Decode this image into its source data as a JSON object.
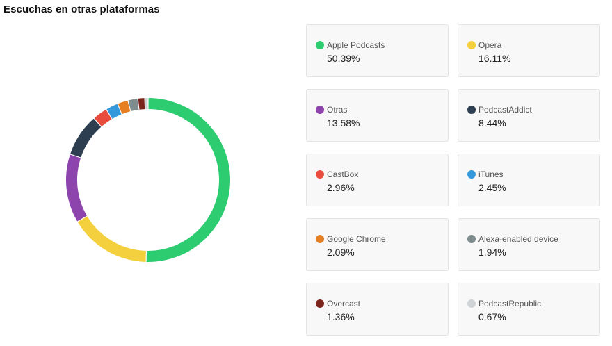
{
  "title": "Escuchas en otras plataformas",
  "chart_data": {
    "type": "pie",
    "variant": "donut",
    "title": "Escuchas en otras plataformas",
    "slices": [
      {
        "label": "Apple Podcasts",
        "value": 50.39,
        "display": "50.39%",
        "color": "#2ecc71",
        "icon": "dot"
      },
      {
        "label": "Opera",
        "value": 16.11,
        "display": "16.11%",
        "color": "#f4d03f",
        "icon": "dot"
      },
      {
        "label": "Otras",
        "value": 13.58,
        "display": "13.58%",
        "color": "#8e44ad",
        "icon": "dot"
      },
      {
        "label": "PodcastAddict",
        "value": 8.44,
        "display": "8.44%",
        "color": "#2c3e50",
        "icon": "dot"
      },
      {
        "label": "CastBox",
        "value": 2.96,
        "display": "2.96%",
        "color": "#e74c3c",
        "icon": "dot"
      },
      {
        "label": "iTunes",
        "value": 2.45,
        "display": "2.45%",
        "color": "#3498db",
        "icon": "dot"
      },
      {
        "label": "Google Chrome",
        "value": 2.09,
        "display": "2.09%",
        "color": "#e67e22",
        "icon": "dot"
      },
      {
        "label": "Alexa-enabled device",
        "value": 1.94,
        "display": "1.94%",
        "color": "#7f8c8d",
        "icon": "dot"
      },
      {
        "label": "Overcast",
        "value": 1.36,
        "display": "1.36%",
        "color": "#7b241c",
        "icon": "dot"
      },
      {
        "label": "PodcastRepublic",
        "value": 0.67,
        "display": "0.67%",
        "color": "#cfd3d6",
        "icon": "dot"
      }
    ]
  }
}
